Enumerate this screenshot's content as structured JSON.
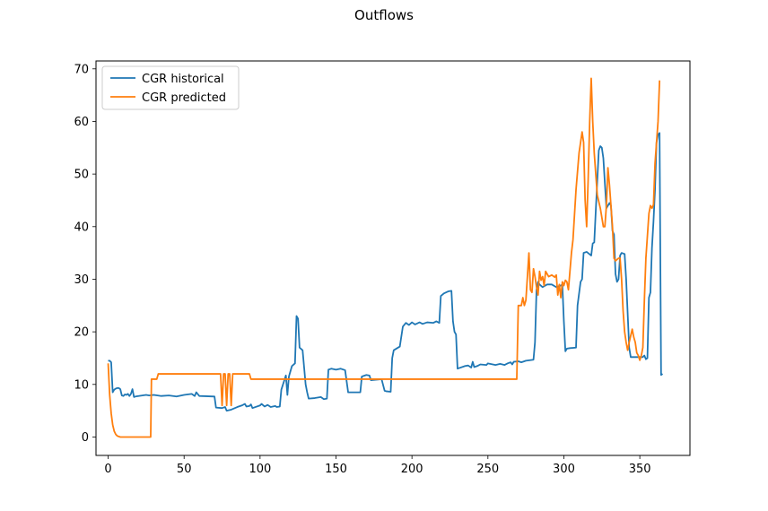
{
  "chart_data": {
    "type": "line",
    "title": "Outflows",
    "xlabel": "",
    "ylabel": "",
    "xlim": [
      -8,
      383
    ],
    "ylim": [
      -3.5,
      71.5
    ],
    "xticks": [
      0,
      50,
      100,
      150,
      200,
      250,
      300,
      350
    ],
    "yticks": [
      0,
      10,
      20,
      30,
      40,
      50,
      60,
      70
    ],
    "grid": false,
    "legend_position": "top-left",
    "series": [
      {
        "name": "CGR historical",
        "color": "#1f77b4",
        "points": [
          [
            0,
            14.5
          ],
          [
            1,
            14.5
          ],
          [
            2,
            14.2
          ],
          [
            3,
            8.5
          ],
          [
            4,
            9
          ],
          [
            5,
            9.2
          ],
          [
            6,
            9.3
          ],
          [
            7,
            9.3
          ],
          [
            8,
            9.1
          ],
          [
            9,
            7.9
          ],
          [
            10,
            7.8
          ],
          [
            11,
            8.1
          ],
          [
            12,
            8.0
          ],
          [
            13,
            8.2
          ],
          [
            14,
            7.8
          ],
          [
            15,
            8.2
          ],
          [
            16,
            9.1
          ],
          [
            17,
            7.6
          ],
          [
            18,
            7.7
          ],
          [
            20,
            7.8
          ],
          [
            25,
            8
          ],
          [
            27,
            7.9
          ],
          [
            30,
            8
          ],
          [
            35,
            7.8
          ],
          [
            40,
            7.9
          ],
          [
            45,
            7.7
          ],
          [
            50,
            8.0
          ],
          [
            55,
            8.2
          ],
          [
            57,
            7.8
          ],
          [
            58,
            8.5
          ],
          [
            60,
            7.8
          ],
          [
            70,
            7.7
          ],
          [
            71,
            5.6
          ],
          [
            75,
            5.5
          ],
          [
            77,
            5.7
          ],
          [
            78,
            5.0
          ],
          [
            81,
            5.2
          ],
          [
            85,
            5.7
          ],
          [
            88,
            6.0
          ],
          [
            90,
            6.3
          ],
          [
            91,
            5.8
          ],
          [
            93,
            5.9
          ],
          [
            94,
            6.2
          ],
          [
            95,
            5.5
          ],
          [
            100,
            6.0
          ],
          [
            101,
            6.3
          ],
          [
            103,
            5.8
          ],
          [
            105,
            6.1
          ],
          [
            107,
            5.7
          ],
          [
            110,
            5.9
          ],
          [
            111,
            5.7
          ],
          [
            113,
            5.8
          ],
          [
            114,
            9
          ],
          [
            117,
            11.7
          ],
          [
            118,
            8
          ],
          [
            119,
            11.5
          ],
          [
            121,
            13.5
          ],
          [
            123,
            14
          ],
          [
            124,
            23
          ],
          [
            125,
            22.5
          ],
          [
            126,
            17
          ],
          [
            128,
            16.5
          ],
          [
            130,
            10
          ],
          [
            131,
            8.5
          ],
          [
            132,
            7.3
          ],
          [
            136,
            7.4
          ],
          [
            140,
            7.6
          ],
          [
            142,
            7.2
          ],
          [
            144,
            7.3
          ],
          [
            145,
            12.8
          ],
          [
            147,
            13
          ],
          [
            150,
            12.8
          ],
          [
            153,
            13
          ],
          [
            156,
            12.7
          ],
          [
            158,
            8.5
          ],
          [
            163,
            8.5
          ],
          [
            166,
            8.5
          ],
          [
            167,
            11.5
          ],
          [
            170,
            11.8
          ],
          [
            172,
            11.7
          ],
          [
            173,
            10.8
          ],
          [
            180,
            11
          ],
          [
            182,
            8.8
          ],
          [
            183,
            8.7
          ],
          [
            186,
            8.6
          ],
          [
            187,
            15
          ],
          [
            188,
            16.5
          ],
          [
            192,
            17.2
          ],
          [
            194,
            21
          ],
          [
            196,
            21.7
          ],
          [
            198,
            21.3
          ],
          [
            200,
            21.8
          ],
          [
            202,
            21.4
          ],
          [
            205,
            21.8
          ],
          [
            207,
            21.5
          ],
          [
            210,
            21.8
          ],
          [
            214,
            21.7
          ],
          [
            216,
            22
          ],
          [
            218,
            21.7
          ],
          [
            219,
            26.8
          ],
          [
            221,
            27.3
          ],
          [
            224,
            27.7
          ],
          [
            226,
            27.8
          ],
          [
            227,
            22
          ],
          [
            228,
            20
          ],
          [
            229,
            19.5
          ],
          [
            230,
            13
          ],
          [
            235,
            13.5
          ],
          [
            237,
            13.6
          ],
          [
            239,
            13.2
          ],
          [
            240,
            14.3
          ],
          [
            241,
            13.3
          ],
          [
            243,
            13.5
          ],
          [
            245,
            13.8
          ],
          [
            249,
            13.7
          ],
          [
            250,
            14
          ],
          [
            255,
            13.7
          ],
          [
            258,
            13.9
          ],
          [
            261,
            13.7
          ],
          [
            263,
            14
          ],
          [
            265,
            14.2
          ],
          [
            266,
            13.8
          ],
          [
            267,
            14.3
          ],
          [
            270,
            14.4
          ],
          [
            272,
            14.2
          ],
          [
            275,
            14.5
          ],
          [
            280,
            14.7
          ],
          [
            281,
            18
          ],
          [
            282,
            28
          ],
          [
            283,
            29.5
          ],
          [
            284,
            29
          ],
          [
            286,
            28.5
          ],
          [
            289,
            29
          ],
          [
            292,
            29
          ],
          [
            295,
            28.5
          ],
          [
            298,
            28.8
          ],
          [
            299,
            29
          ],
          [
            300,
            22
          ],
          [
            301,
            16.3
          ],
          [
            302,
            16.8
          ],
          [
            304,
            16.9
          ],
          [
            308,
            17
          ],
          [
            309,
            25
          ],
          [
            311,
            29.5
          ],
          [
            312,
            30
          ],
          [
            313,
            35
          ],
          [
            315,
            35.2
          ],
          [
            318,
            34.5
          ],
          [
            319,
            36.8
          ],
          [
            320,
            37
          ],
          [
            321,
            43
          ],
          [
            323,
            54.5
          ],
          [
            324,
            55.3
          ],
          [
            325,
            55
          ],
          [
            326,
            53
          ],
          [
            328,
            43.5
          ],
          [
            330,
            44.5
          ],
          [
            331,
            44
          ],
          [
            332,
            39.2
          ],
          [
            333,
            38.5
          ],
          [
            334,
            31
          ],
          [
            335,
            29.5
          ],
          [
            336,
            30
          ],
          [
            337,
            34.5
          ],
          [
            338,
            35
          ],
          [
            340,
            34.8
          ],
          [
            341,
            30
          ],
          [
            343,
            17
          ],
          [
            344,
            15.2
          ],
          [
            350,
            15.2
          ],
          [
            352,
            15.2
          ],
          [
            353,
            15.5
          ],
          [
            354,
            14.8
          ],
          [
            355,
            15
          ],
          [
            356,
            26.5
          ],
          [
            357,
            27.5
          ],
          [
            358,
            36
          ],
          [
            359,
            41
          ],
          [
            360,
            47
          ],
          [
            361,
            56
          ],
          [
            362,
            57.5
          ],
          [
            363,
            57.8
          ],
          [
            364,
            11.8
          ],
          [
            365,
            12
          ]
        ]
      },
      {
        "name": "CGR predicted",
        "color": "#ff7f0e",
        "points": [
          [
            0,
            14
          ],
          [
            1,
            8
          ],
          [
            2,
            4.5
          ],
          [
            3,
            2.3
          ],
          [
            4,
            1.1
          ],
          [
            5,
            0.5
          ],
          [
            6,
            0.2
          ],
          [
            7,
            0.1
          ],
          [
            8,
            0
          ],
          [
            20,
            0
          ],
          [
            28,
            0
          ],
          [
            28.5,
            11
          ],
          [
            32,
            11
          ],
          [
            33,
            12
          ],
          [
            40,
            12
          ],
          [
            50,
            12
          ],
          [
            60,
            12
          ],
          [
            70,
            12
          ],
          [
            74,
            12
          ],
          [
            75,
            6
          ],
          [
            76,
            12
          ],
          [
            77,
            12
          ],
          [
            78,
            6
          ],
          [
            79,
            12
          ],
          [
            80,
            12
          ],
          [
            81,
            6
          ],
          [
            82,
            12
          ],
          [
            85,
            12
          ],
          [
            90,
            12
          ],
          [
            93,
            12
          ],
          [
            94,
            11
          ],
          [
            100,
            11
          ],
          [
            150,
            11
          ],
          [
            200,
            11
          ],
          [
            250,
            11
          ],
          [
            269,
            11
          ],
          [
            270,
            25
          ],
          [
            272,
            25
          ],
          [
            273,
            26.5
          ],
          [
            274,
            25
          ],
          [
            275,
            26
          ],
          [
            277,
            35
          ],
          [
            278,
            28
          ],
          [
            279,
            27.5
          ],
          [
            280,
            32
          ],
          [
            281,
            30.5
          ],
          [
            282,
            28.5
          ],
          [
            283,
            27
          ],
          [
            284,
            31.5
          ],
          [
            285,
            29.8
          ],
          [
            286,
            30.5
          ],
          [
            287,
            28.8
          ],
          [
            288,
            31.5
          ],
          [
            290,
            30.5
          ],
          [
            292,
            30.8
          ],
          [
            294,
            30.4
          ],
          [
            295,
            30.8
          ],
          [
            296,
            27
          ],
          [
            297,
            29
          ],
          [
            298,
            26.5
          ],
          [
            299,
            29.5
          ],
          [
            300,
            28.8
          ],
          [
            301,
            29.8
          ],
          [
            302,
            29.5
          ],
          [
            303,
            28
          ],
          [
            305,
            35
          ],
          [
            306,
            37.5
          ],
          [
            308,
            47
          ],
          [
            310,
            54
          ],
          [
            312,
            58
          ],
          [
            313,
            56
          ],
          [
            314,
            45
          ],
          [
            315,
            40
          ],
          [
            316,
            49
          ],
          [
            317,
            60
          ],
          [
            318,
            68.2
          ],
          [
            319,
            60
          ],
          [
            320,
            54
          ],
          [
            322,
            46
          ],
          [
            324,
            43.5
          ],
          [
            326,
            40
          ],
          [
            327,
            40
          ],
          [
            328,
            44
          ],
          [
            329,
            51.2
          ],
          [
            330,
            48
          ],
          [
            331,
            44
          ],
          [
            332,
            40
          ],
          [
            333,
            34
          ],
          [
            334,
            33.5
          ],
          [
            336,
            34
          ],
          [
            337,
            34
          ],
          [
            338,
            30
          ],
          [
            339,
            24
          ],
          [
            340,
            20
          ],
          [
            341,
            18
          ],
          [
            342,
            16.5
          ],
          [
            343,
            18
          ],
          [
            345,
            20.5
          ],
          [
            346,
            19
          ],
          [
            347,
            18
          ],
          [
            348,
            16
          ],
          [
            349,
            15.5
          ],
          [
            350,
            14.6
          ],
          [
            351,
            15.5
          ],
          [
            352,
            17
          ],
          [
            353,
            26
          ],
          [
            354,
            34
          ],
          [
            356,
            42.5
          ],
          [
            357,
            44
          ],
          [
            358,
            43.5
          ],
          [
            359,
            44.2
          ],
          [
            360,
            52
          ],
          [
            362,
            60
          ],
          [
            363,
            67.8
          ]
        ]
      }
    ]
  }
}
